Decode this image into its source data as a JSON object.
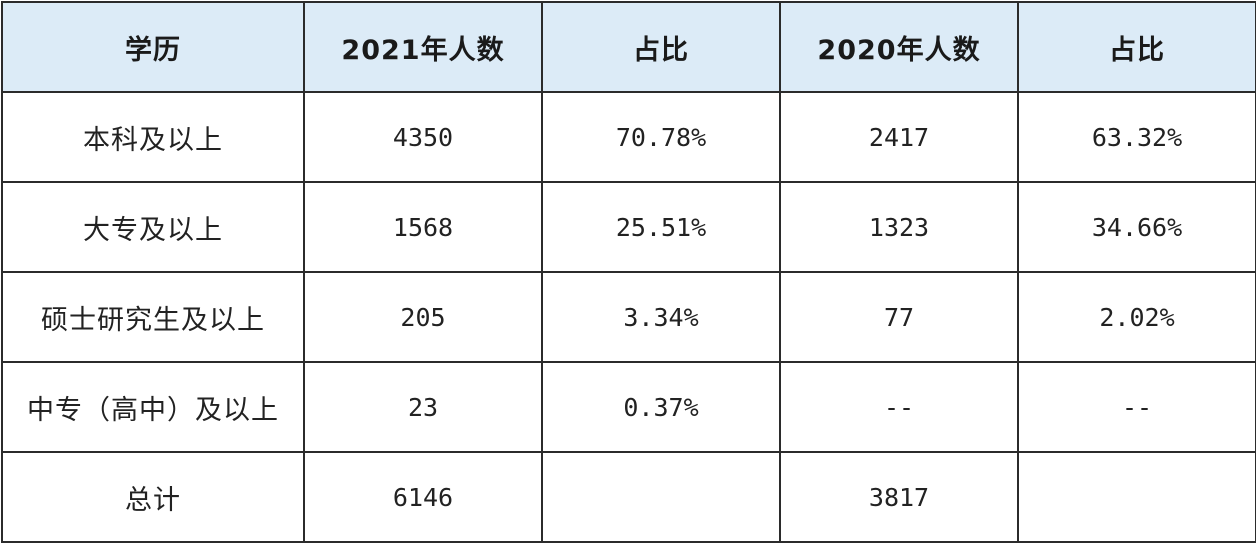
{
  "table": {
    "headers": [
      "学历",
      "2021年人数",
      "占比",
      "2020年人数",
      "占比"
    ],
    "rows": [
      [
        "本科及以上",
        "4350",
        "70.78%",
        "2417",
        "63.32%"
      ],
      [
        "大专及以上",
        "1568",
        "25.51%",
        "1323",
        "34.66%"
      ],
      [
        "硕士研究生及以上",
        "205",
        "3.34%",
        "77",
        "2.02%"
      ],
      [
        "中专（高中）及以上",
        "23",
        "0.37%",
        "--",
        "--"
      ],
      [
        "总计",
        "6146",
        "",
        "3817",
        ""
      ]
    ],
    "colors": {
      "header_background": "#dcebf7",
      "border": "#2b2b2b",
      "text": "#222222"
    }
  }
}
